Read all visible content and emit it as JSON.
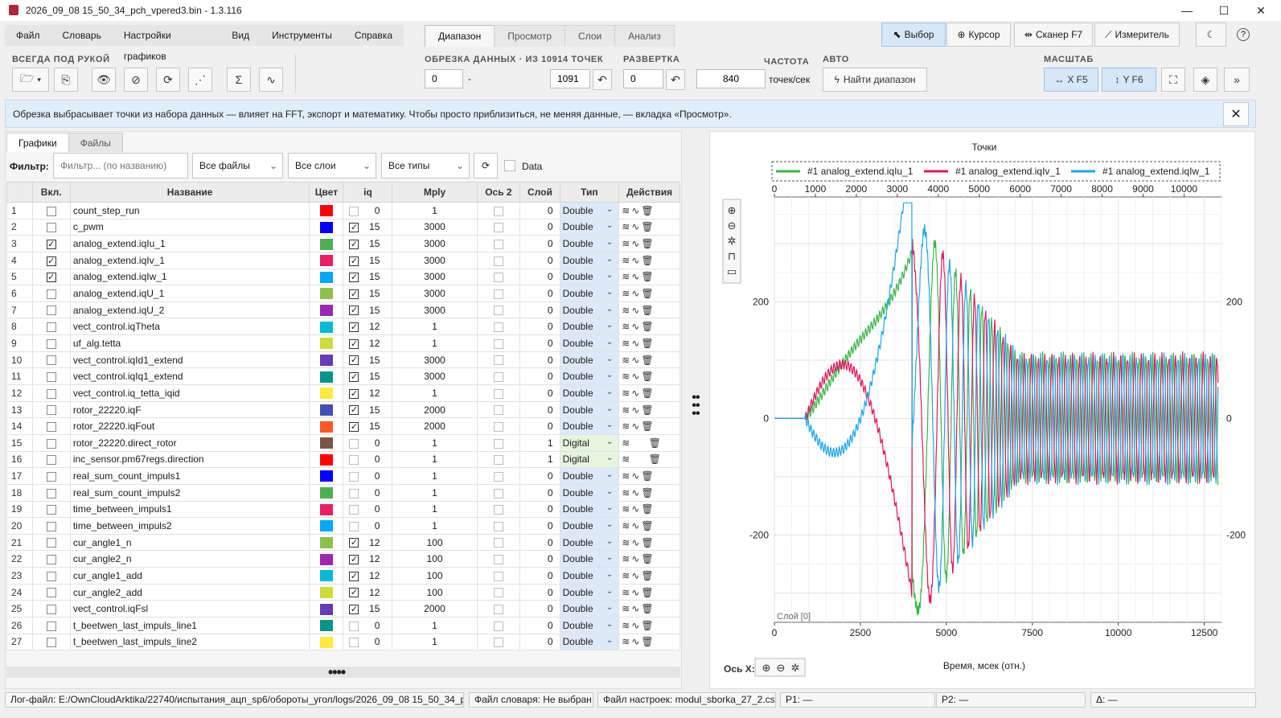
{
  "window": {
    "title": "2026_09_08 15_50_34_pch_vpered3.bin - 1.3.116",
    "minimize": "—",
    "maximize": "☐",
    "close": "✕"
  },
  "menu": [
    "Файл",
    "Словарь",
    "Настройки графиков",
    "Вид",
    "Инструменты",
    "Справка"
  ],
  "tabs": [
    "Диапазон",
    "Просмотр",
    "Слои",
    "Анализ"
  ],
  "active_tab": "Диапазон",
  "modes": {
    "select": "Выбор",
    "cursor": "Курсор",
    "scanner": "Сканер F7",
    "meter": "Измеритель"
  },
  "toolbar": {
    "group_always": "ВСЕГДА ПОД РУКОЙ",
    "group_trim": "ОБРЕЗКА ДАННЫХ · ИЗ 10914 ТОЧЕК",
    "trim_from": "0",
    "trim_dash": "-",
    "trim_to": "1091",
    "group_sweep": "РАЗВЕРТКА",
    "sweep_value": "0",
    "group_freq": "ЧАСТОТА",
    "freq_value": "840",
    "freq_unit": "точек/сек",
    "group_auto": "АВТО",
    "find_range": "Найти диапазон",
    "group_scale": "МАСШТАБ",
    "scale_x": "X F5",
    "scale_y": "Y F6"
  },
  "info": "Обрезка выбрасывает точки из набора данных — влияет на FFT, экспорт и математику. Чтобы просто приблизиться, не меняя данные, — вкладка «Просмотр».",
  "left_tabs": [
    "Графики",
    "Файлы"
  ],
  "filter": {
    "label": "Фильтр:",
    "placeholder": "Фильтр... (по названию)",
    "files": "Все файлы",
    "layers": "Все слои",
    "types": "Все типы",
    "data_label": "Data"
  },
  "columns": [
    "",
    "Вкл.",
    "Название",
    "Цвет",
    "iq",
    "Mply",
    "Ось 2",
    "Слой",
    "Тип",
    "Действия"
  ],
  "rows": [
    {
      "n": "1",
      "on": false,
      "name": "count_step_run",
      "color": "#ff0000",
      "iqon": false,
      "iq": "0",
      "mply": "1",
      "layer": "0",
      "type": "Double"
    },
    {
      "n": "2",
      "on": false,
      "name": "c_pwm",
      "color": "#0000ff",
      "iqon": true,
      "iq": "15",
      "mply": "3000",
      "layer": "0",
      "type": "Double"
    },
    {
      "n": "3",
      "on": true,
      "name": "analog_extend.iqIu_1",
      "color": "#4caf50",
      "iqon": true,
      "iq": "15",
      "mply": "3000",
      "layer": "0",
      "type": "Double"
    },
    {
      "n": "4",
      "on": true,
      "name": "analog_extend.iqIv_1",
      "color": "#e91e63",
      "iqon": true,
      "iq": "15",
      "mply": "3000",
      "layer": "0",
      "type": "Double"
    },
    {
      "n": "5",
      "on": true,
      "name": "analog_extend.iqIw_1",
      "color": "#03a9f4",
      "iqon": true,
      "iq": "15",
      "mply": "3000",
      "layer": "0",
      "type": "Double"
    },
    {
      "n": "6",
      "on": false,
      "name": "analog_extend.iqU_1",
      "color": "#8bc34a",
      "iqon": true,
      "iq": "15",
      "mply": "3000",
      "layer": "0",
      "type": "Double"
    },
    {
      "n": "7",
      "on": false,
      "name": "analog_extend.iqU_2",
      "color": "#9c27b0",
      "iqon": true,
      "iq": "15",
      "mply": "3000",
      "layer": "0",
      "type": "Double"
    },
    {
      "n": "8",
      "on": false,
      "name": "vect_control.iqTheta",
      "color": "#00bcd4",
      "iqon": true,
      "iq": "12",
      "mply": "1",
      "layer": "0",
      "type": "Double"
    },
    {
      "n": "9",
      "on": false,
      "name": "uf_alg.tetta",
      "color": "#cddc39",
      "iqon": true,
      "iq": "12",
      "mply": "1",
      "layer": "0",
      "type": "Double"
    },
    {
      "n": "10",
      "on": false,
      "name": "vect_control.iqId1_extend",
      "color": "#673ab7",
      "iqon": true,
      "iq": "15",
      "mply": "3000",
      "layer": "0",
      "type": "Double"
    },
    {
      "n": "11",
      "on": false,
      "name": "vect_control.iqIq1_extend",
      "color": "#009688",
      "iqon": true,
      "iq": "15",
      "mply": "3000",
      "layer": "0",
      "type": "Double"
    },
    {
      "n": "12",
      "on": false,
      "name": "vect_control.iq_tetta_iqid",
      "color": "#ffeb3b",
      "iqon": true,
      "iq": "12",
      "mply": "1",
      "layer": "0",
      "type": "Double"
    },
    {
      "n": "13",
      "on": false,
      "name": "rotor_22220.iqF",
      "color": "#3f51b5",
      "iqon": true,
      "iq": "15",
      "mply": "2000",
      "layer": "0",
      "type": "Double"
    },
    {
      "n": "14",
      "on": false,
      "name": "rotor_22220.iqFout",
      "color": "#ff5722",
      "iqon": true,
      "iq": "15",
      "mply": "2000",
      "layer": "0",
      "type": "Double"
    },
    {
      "n": "15",
      "on": false,
      "name": "rotor_22220.direct_rotor",
      "color": "#795548",
      "iqon": false,
      "iq": "0",
      "mply": "1",
      "layer": "1",
      "type": "Digital"
    },
    {
      "n": "16",
      "on": false,
      "name": "inc_sensor.pm67regs.direction",
      "color": "#ff0000",
      "iqon": false,
      "iq": "0",
      "mply": "1",
      "layer": "1",
      "type": "Digital"
    },
    {
      "n": "17",
      "on": false,
      "name": "real_sum_count_impuls1",
      "color": "#0000ff",
      "iqon": false,
      "iq": "0",
      "mply": "1",
      "layer": "0",
      "type": "Double"
    },
    {
      "n": "18",
      "on": false,
      "name": "real_sum_count_impuls2",
      "color": "#4caf50",
      "iqon": false,
      "iq": "0",
      "mply": "1",
      "layer": "0",
      "type": "Double"
    },
    {
      "n": "19",
      "on": false,
      "name": "time_between_impuls1",
      "color": "#e91e63",
      "iqon": false,
      "iq": "0",
      "mply": "1",
      "layer": "0",
      "type": "Double"
    },
    {
      "n": "20",
      "on": false,
      "name": "time_between_impuls2",
      "color": "#03a9f4",
      "iqon": false,
      "iq": "0",
      "mply": "1",
      "layer": "0",
      "type": "Double"
    },
    {
      "n": "21",
      "on": false,
      "name": "cur_angle1_n",
      "color": "#8bc34a",
      "iqon": true,
      "iq": "12",
      "mply": "100",
      "layer": "0",
      "type": "Double"
    },
    {
      "n": "22",
      "on": false,
      "name": "cur_angle2_n",
      "color": "#9c27b0",
      "iqon": true,
      "iq": "12",
      "mply": "100",
      "layer": "0",
      "type": "Double"
    },
    {
      "n": "23",
      "on": false,
      "name": "cur_angle1_add",
      "color": "#00bcd4",
      "iqon": true,
      "iq": "12",
      "mply": "100",
      "layer": "0",
      "type": "Double"
    },
    {
      "n": "24",
      "on": false,
      "name": "cur_angle2_add",
      "color": "#cddc39",
      "iqon": true,
      "iq": "12",
      "mply": "100",
      "layer": "0",
      "type": "Double"
    },
    {
      "n": "25",
      "on": false,
      "name": "vect_control.iqFsl",
      "color": "#673ab7",
      "iqon": true,
      "iq": "15",
      "mply": "2000",
      "layer": "0",
      "type": "Double"
    },
    {
      "n": "26",
      "on": false,
      "name": "t_beetwen_last_impuls_line1",
      "color": "#009688",
      "iqon": false,
      "iq": "0",
      "mply": "1",
      "layer": "0",
      "type": "Double"
    },
    {
      "n": "27",
      "on": false,
      "name": "t_beetwen_last_impuls_line2",
      "color": "#ffeb3b",
      "iqon": false,
      "iq": "0",
      "mply": "1",
      "layer": "0",
      "type": "Double"
    }
  ],
  "chart_data": {
    "type": "line",
    "title": "Точки",
    "xlabel": "Время, мсек (отн.)",
    "ylabel": "",
    "layer_label": "Слой [0]",
    "axis_label": "Ось X:",
    "series": [
      {
        "name": "#1 analog_extend.iqIu_1",
        "color": "#3cb54a"
      },
      {
        "name": "#1 analog_extend.iqIv_1",
        "color": "#e3175f"
      },
      {
        "name": "#1 analog_extend.iqIw_1",
        "color": "#1ea7e8"
      }
    ],
    "xlim": [
      0,
      13000
    ],
    "ylim": [
      -350,
      380
    ],
    "xticks": [
      "0",
      "2500",
      "5000",
      "7500",
      "10000",
      "12500"
    ],
    "xticks_values": [
      0,
      2500,
      5000,
      7500,
      10000,
      12500
    ],
    "top_ticks": [
      "0",
      "1000",
      "2000",
      "3000",
      "4000",
      "5000",
      "6000",
      "7000",
      "8000",
      "9000",
      "10000"
    ],
    "top_ticks_values": [
      0,
      1000,
      2000,
      3000,
      4000,
      5000,
      6000,
      7000,
      8000,
      9000,
      10000
    ],
    "top_xlim": [
      0,
      10914
    ],
    "yticks": [
      "200",
      "0",
      "-200"
    ],
    "yticks_values": [
      200,
      0,
      -200
    ]
  },
  "status": {
    "log": "Лог-файл: E:/OwnCloudArktika/22740/испытания_ацп_sp6/обороты_угол/logs/2026_09_08 15_50_34_pch_",
    "dict": "Файл словаря: Не выбран",
    "settings": "Файл настроек: modul_sborka_27_2.csv",
    "p1": "P1: —",
    "p2": "P2: —",
    "delta": "Δ: —"
  }
}
